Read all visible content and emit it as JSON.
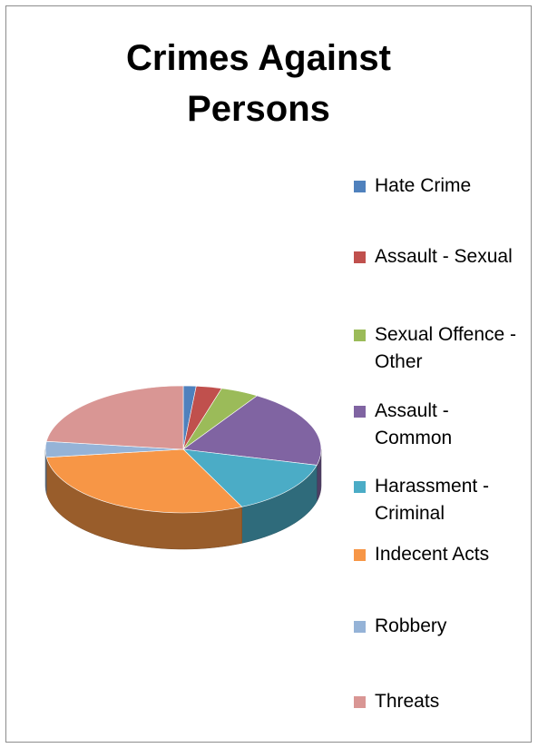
{
  "chart_data": {
    "type": "pie",
    "title": "Crimes Against Persons",
    "categories": [
      "Hate Crime",
      "Assault - Sexual",
      "Sexual Offence - Other",
      "Assault - Common",
      "Harassment - Criminal",
      "Indecent Acts",
      "Robbery",
      "Threats"
    ],
    "values": [
      1.5,
      3,
      4.5,
      20,
      14,
      30,
      4,
      23
    ],
    "colors": [
      "#4f81bd",
      "#c0504d",
      "#9bbb59",
      "#8064a2",
      "#4bacc6",
      "#f79646",
      "#95b3d7",
      "#d99694"
    ],
    "legend_position": "right",
    "style": "3d"
  },
  "legend": {
    "items": [
      {
        "label": "Hate Crime"
      },
      {
        "label": "Assault - Sexual"
      },
      {
        "label": "Sexual Offence - Other"
      },
      {
        "label": "Assault - Common"
      },
      {
        "label": "Harassment - Criminal"
      },
      {
        "label": "Indecent Acts"
      },
      {
        "label": "Robbery"
      },
      {
        "label": "Threats"
      }
    ]
  }
}
